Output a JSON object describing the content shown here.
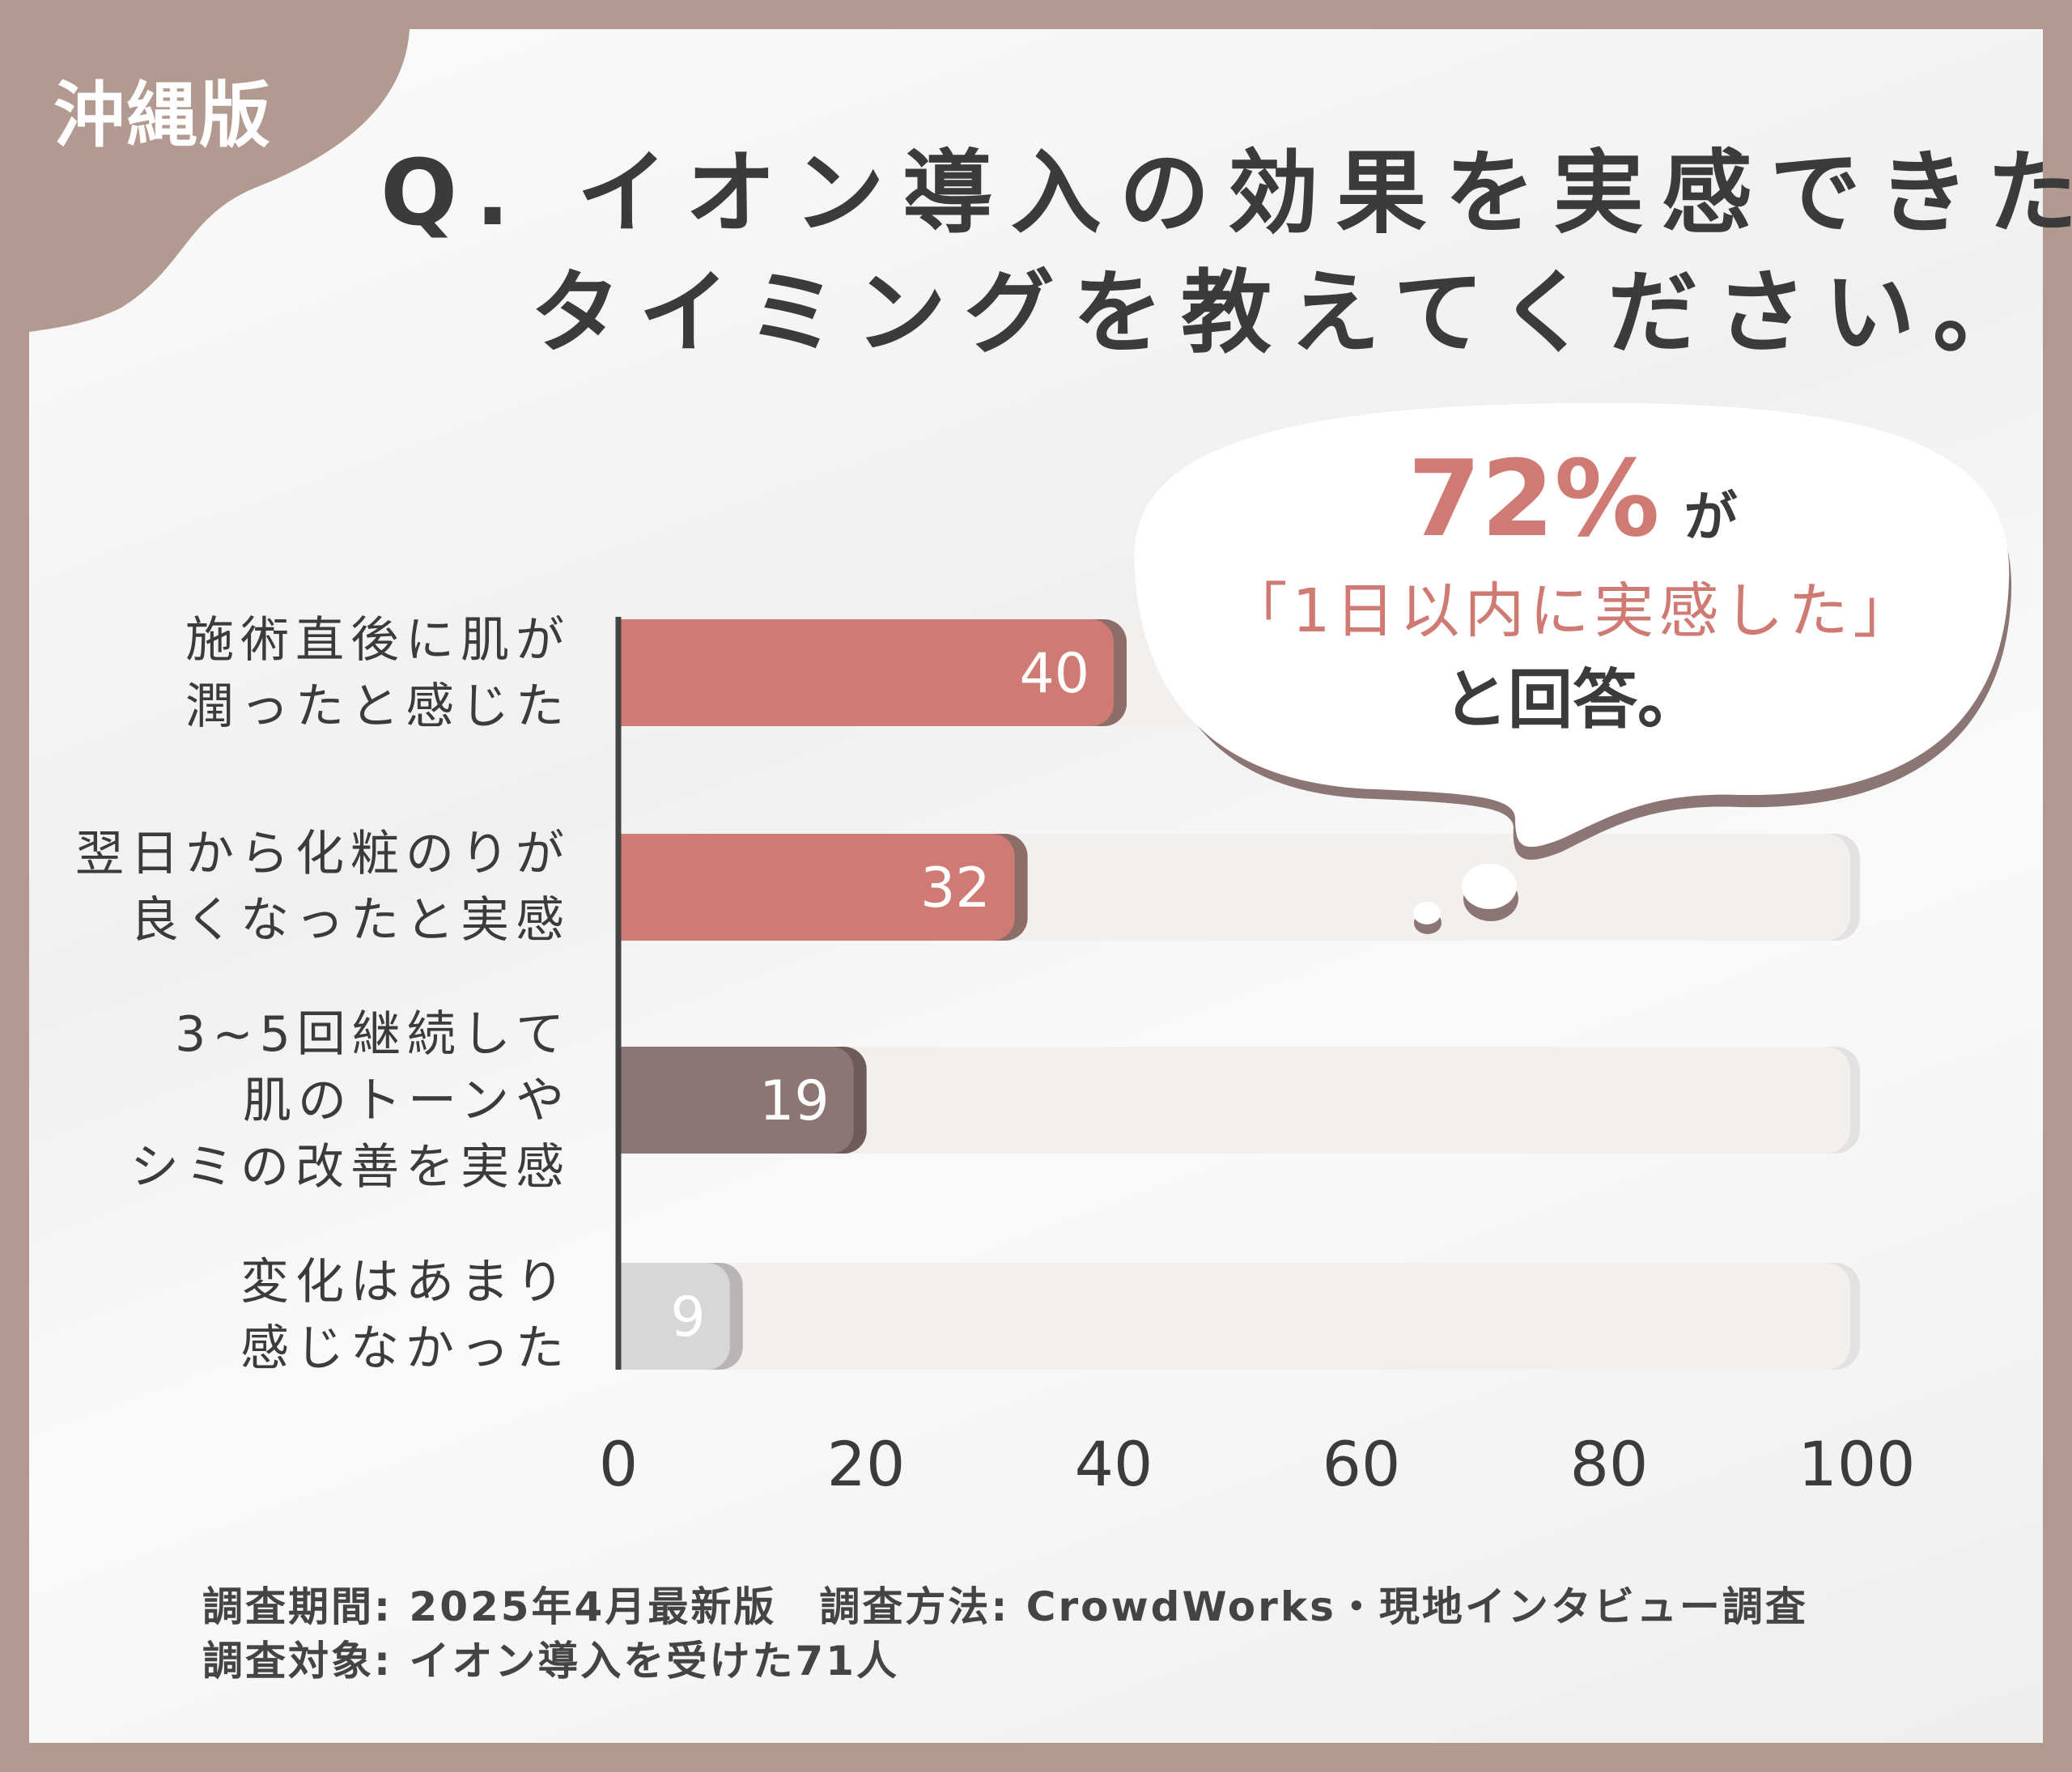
{
  "badge": "沖縄版",
  "title": {
    "line1": "Q. イオン導入の効果を実感できた",
    "line2": "タイミングを教えてください。"
  },
  "callout": {
    "percent": "72%",
    "particle": "が",
    "quote": "「1日以内に実感した」",
    "ending": "と回答。"
  },
  "chart_data": {
    "type": "bar",
    "orientation": "horizontal",
    "categories": [
      [
        "施術直後に肌が",
        "潤ったと感じた"
      ],
      [
        "翌日から化粧のりが",
        "良くなったと実感"
      ],
      [
        "3~5回継続して",
        "肌のトーンや",
        "シミの改善を実感"
      ],
      [
        "変化はあまり",
        "感じなかった"
      ]
    ],
    "values": [
      40,
      32,
      19,
      9
    ],
    "value_labels": [
      "40",
      "32",
      "19",
      "9"
    ],
    "bar_colors": [
      "#d07a74",
      "#d07a74",
      "#8c7673",
      "#d9d6d6"
    ],
    "track_color": "#f3efed",
    "xlim": [
      0,
      100
    ],
    "xticks": [
      "0",
      "20",
      "40",
      "60",
      "80",
      "100"
    ],
    "grid": false
  },
  "footer": {
    "line1": "調査期間: 2025年4月最新版　調査方法: CrowdWorks・現地インタビュー調査",
    "line2": "調査対象: イオン導入を受けた71人"
  },
  "colors": {
    "frame": "#b39a90",
    "accent": "#d07a74",
    "text": "#3b3b3b"
  }
}
